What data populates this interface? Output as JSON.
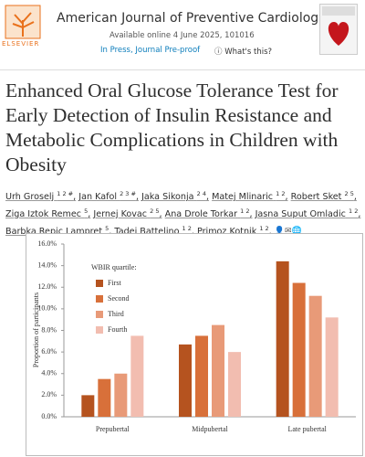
{
  "header": {
    "publisher": "ELSEVIER",
    "journal": "American Journal of Preventive Cardiology",
    "availability": "Available online 4 June 2025, 101016",
    "status": "In Press, Journal Pre-proof",
    "help": "What's this?"
  },
  "article": {
    "title": "Enhanced Oral Glucose Tolerance Test for Early Detection of Insulin Resistance and Metabolic Complications in Children with Obesity",
    "authors": [
      {
        "name": "Urh Groselj",
        "affil": "1 2 #"
      },
      {
        "name": "Jan Kafol",
        "affil": "2 3 #"
      },
      {
        "name": "Jaka Sikonja",
        "affil": "2 4"
      },
      {
        "name": "Matej Mlinaric",
        "affil": "1 2"
      },
      {
        "name": "Robert Sket",
        "affil": "2 5"
      },
      {
        "name": "Ziga Iztok Remec",
        "affil": "5"
      },
      {
        "name": "Jernej Kovac",
        "affil": "2 5"
      },
      {
        "name": "Ana Drole Torkar",
        "affil": "1 2"
      },
      {
        "name": "Jasna Suput Omladic",
        "affil": "1 2"
      },
      {
        "name": "Barbka Repic Lampret",
        "affil": "5"
      },
      {
        "name": "Tadej Battelino",
        "affil": "1 2"
      },
      {
        "name": "Primoz Kotnik",
        "affil": "1 2"
      }
    ]
  },
  "chart_data": {
    "type": "bar",
    "y_label": "Proportion of participants",
    "legend_title": "WBIR quartile:",
    "categories": [
      "Prepubertal",
      "Midpubertal",
      "Late pubertal"
    ],
    "series": [
      {
        "name": "First",
        "color": "#b5531f",
        "values": [
          2.0,
          6.7,
          14.4
        ]
      },
      {
        "name": "Second",
        "color": "#d8703a",
        "values": [
          3.5,
          7.5,
          12.4
        ]
      },
      {
        "name": "Third",
        "color": "#e89a78",
        "values": [
          4.0,
          8.5,
          11.2
        ]
      },
      {
        "name": "Fourth",
        "color": "#f2bdb0",
        "values": [
          7.5,
          6.0,
          9.2
        ]
      }
    ],
    "ylim": [
      0,
      16
    ],
    "yticks": [
      {
        "value": 0,
        "label": "0.0%"
      },
      {
        "value": 2,
        "label": "2.0%"
      },
      {
        "value": 4,
        "label": "4.0%"
      },
      {
        "value": 6,
        "label": "6.0%"
      },
      {
        "value": 8,
        "label": "8.0%"
      },
      {
        "value": 10,
        "label": "10.0%"
      },
      {
        "value": 12,
        "label": "12.0%"
      },
      {
        "value": 14,
        "label": "14.0%"
      },
      {
        "value": 16,
        "label": "16.0%"
      }
    ],
    "grid": false
  }
}
